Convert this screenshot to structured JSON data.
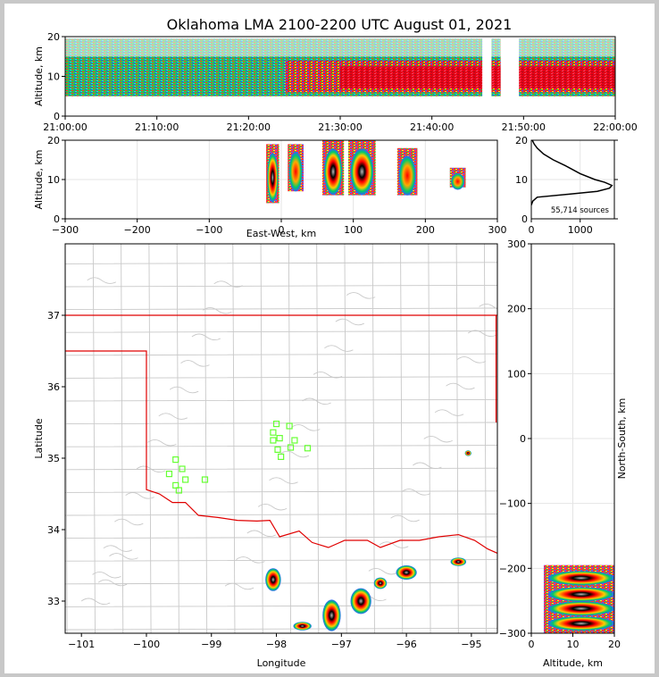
{
  "chart_data": {
    "title": "Oklahoma LMA 2100-2200 UTC August 01, 2021",
    "type": "scatter",
    "panels": {
      "time_height": {
        "ylabel": "Altitude, km",
        "ylim": [
          0,
          20
        ],
        "yticks": [
          "0",
          "10",
          "20"
        ],
        "xticks": [
          "21:00:00",
          "21:10:00",
          "21:20:00",
          "21:30:00",
          "21:40:00",
          "21:50:00",
          "22:00:00"
        ],
        "density_bands": [
          {
            "t0": 0,
            "t1": 60,
            "alt_lo": 6,
            "alt_hi": 14,
            "level": "low"
          },
          {
            "t0": 25,
            "t1": 45,
            "alt_lo": 6,
            "alt_hi": 14,
            "level": "high"
          },
          {
            "t0": 45,
            "t1": 60,
            "alt_lo": 6,
            "alt_hi": 14,
            "level": "high"
          }
        ],
        "gaps_minutes": [
          [
            45.5,
            46.5
          ],
          [
            47.5,
            49.5
          ]
        ]
      },
      "ew_altitude": {
        "xlabel": "East-West, km",
        "ylabel": "Altitude, km",
        "xlim": [
          -300,
          300
        ],
        "ylim": [
          0,
          20
        ],
        "xticks": [
          "−300",
          "−200",
          "−100",
          "0",
          "100",
          "200",
          "300"
        ],
        "yticks": [
          "0",
          "10",
          "20"
        ],
        "cells": [
          {
            "x": -12,
            "width": 18,
            "alt_lo": 4,
            "alt_hi": 19,
            "core": true
          },
          {
            "x": 20,
            "width": 22,
            "alt_lo": 7,
            "alt_hi": 19,
            "core": false
          },
          {
            "x": 72,
            "width": 30,
            "alt_lo": 6,
            "alt_hi": 20,
            "core": true
          },
          {
            "x": 112,
            "width": 38,
            "alt_lo": 6,
            "alt_hi": 20,
            "core": true
          },
          {
            "x": 175,
            "width": 28,
            "alt_lo": 6,
            "alt_hi": 18,
            "core": false
          },
          {
            "x": 245,
            "width": 22,
            "alt_lo": 8,
            "alt_hi": 13,
            "core": false
          }
        ]
      },
      "histogram": {
        "xticks": [
          "0",
          "1000"
        ],
        "xlim": [
          0,
          1700
        ],
        "ylim": [
          0,
          20
        ],
        "yticks": [
          "0",
          "10",
          "20"
        ],
        "annotation": "55,714 sources",
        "profile": [
          [
            0,
            3.5
          ],
          [
            30,
            4.5
          ],
          [
            120,
            5.5
          ],
          [
            800,
            6.3
          ],
          [
            1350,
            7
          ],
          [
            1600,
            7.8
          ],
          [
            1650,
            8.5
          ],
          [
            1500,
            9.3
          ],
          [
            1300,
            10
          ],
          [
            1000,
            11.5
          ],
          [
            700,
            13.5
          ],
          [
            450,
            15
          ],
          [
            250,
            16.5
          ],
          [
            120,
            18
          ],
          [
            60,
            19
          ],
          [
            20,
            20
          ]
        ]
      },
      "plan_view": {
        "xlabel": "Longitude",
        "ylabel": "Latitude",
        "xlim": [
          -101.25,
          -94.6
        ],
        "ylim": [
          32.55,
          38.0
        ],
        "xticks": [
          "−101",
          "−100",
          "−99",
          "−98",
          "−97",
          "−96",
          "−95"
        ],
        "yticks": [
          "33",
          "34",
          "35",
          "36",
          "37"
        ],
        "stations": [
          [
            -99.55,
            34.98
          ],
          [
            -99.45,
            34.85
          ],
          [
            -99.65,
            34.78
          ],
          [
            -99.4,
            34.7
          ],
          [
            -99.1,
            34.7
          ],
          [
            -99.55,
            34.62
          ],
          [
            -99.5,
            34.55
          ],
          [
            -98.0,
            35.48
          ],
          [
            -98.05,
            35.36
          ],
          [
            -97.8,
            35.45
          ],
          [
            -97.95,
            35.28
          ],
          [
            -98.05,
            35.25
          ],
          [
            -97.72,
            35.25
          ],
          [
            -97.78,
            35.15
          ],
          [
            -97.52,
            35.14
          ],
          [
            -97.98,
            35.12
          ],
          [
            -97.93,
            35.02
          ]
        ],
        "sources": [
          {
            "lon": -98.05,
            "lat": 33.3,
            "rx": 0.12,
            "ry": 0.16
          },
          {
            "lon": -97.15,
            "lat": 32.8,
            "rx": 0.14,
            "ry": 0.22
          },
          {
            "lon": -96.7,
            "lat": 33.0,
            "rx": 0.16,
            "ry": 0.18
          },
          {
            "lon": -96.4,
            "lat": 33.25,
            "rx": 0.1,
            "ry": 0.08
          },
          {
            "lon": -96.0,
            "lat": 33.4,
            "rx": 0.16,
            "ry": 0.1
          },
          {
            "lon": -95.2,
            "lat": 33.55,
            "rx": 0.12,
            "ry": 0.06
          },
          {
            "lon": -97.6,
            "lat": 32.65,
            "rx": 0.14,
            "ry": 0.06
          },
          {
            "lon": -95.05,
            "lat": 35.07,
            "rx": 0.05,
            "ry": 0.04
          }
        ]
      },
      "ns_altitude": {
        "xlabel": "Altitude, km",
        "ylabel": "North-South, km",
        "xlim": [
          0,
          20
        ],
        "ylim": [
          -300,
          300
        ],
        "xticks": [
          "0",
          "10",
          "20"
        ],
        "yticks": [
          "300",
          "200",
          "100",
          "0",
          "−100",
          "−200",
          "−300"
        ],
        "cells": [
          {
            "y": -215,
            "alt_lo": 4,
            "alt_hi": 20,
            "dense": true
          },
          {
            "y": -240,
            "alt_lo": 6,
            "alt_hi": 20,
            "dense": true
          },
          {
            "y": -262,
            "alt_lo": 6,
            "alt_hi": 20,
            "dense": true
          },
          {
            "y": -285,
            "alt_lo": 7,
            "alt_hi": 20,
            "dense": true
          }
        ]
      }
    }
  }
}
